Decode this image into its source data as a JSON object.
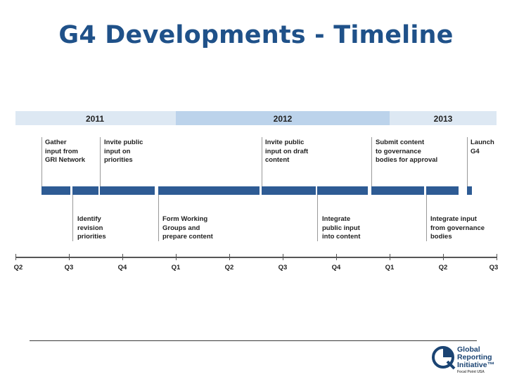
{
  "title": "G4 Developments - Timeline",
  "years": [
    "2011",
    "2012",
    "2013"
  ],
  "quarters": [
    "Q2",
    "Q3",
    "Q4",
    "Q1",
    "Q2",
    "Q3",
    "Q4",
    "Q1",
    "Q2",
    "Q3"
  ],
  "events_top": [
    "Gather\ninput from\nGRI Network",
    "Invite public\ninput on\npriorities",
    "Invite public\ninput on draft\ncontent",
    "Submit content\nto governance\nbodies for approval",
    "Launch\nG4"
  ],
  "events_bottom": [
    "Identify\nrevision\npriorities",
    "Form Working\nGroups and\nprepare content",
    "Integrate\npublic input\ninto content",
    "Integrate input\nfrom governance\nbodies"
  ],
  "colors": {
    "title": "#1f5189",
    "bar": "#2e5b94",
    "year_band_light": "#dde8f3",
    "year_band_mid": "#bcd3eb"
  },
  "logo": {
    "line1": "Global",
    "line2": "Reporting",
    "line3": "Initiative™",
    "sub": "Focal Point USA"
  }
}
